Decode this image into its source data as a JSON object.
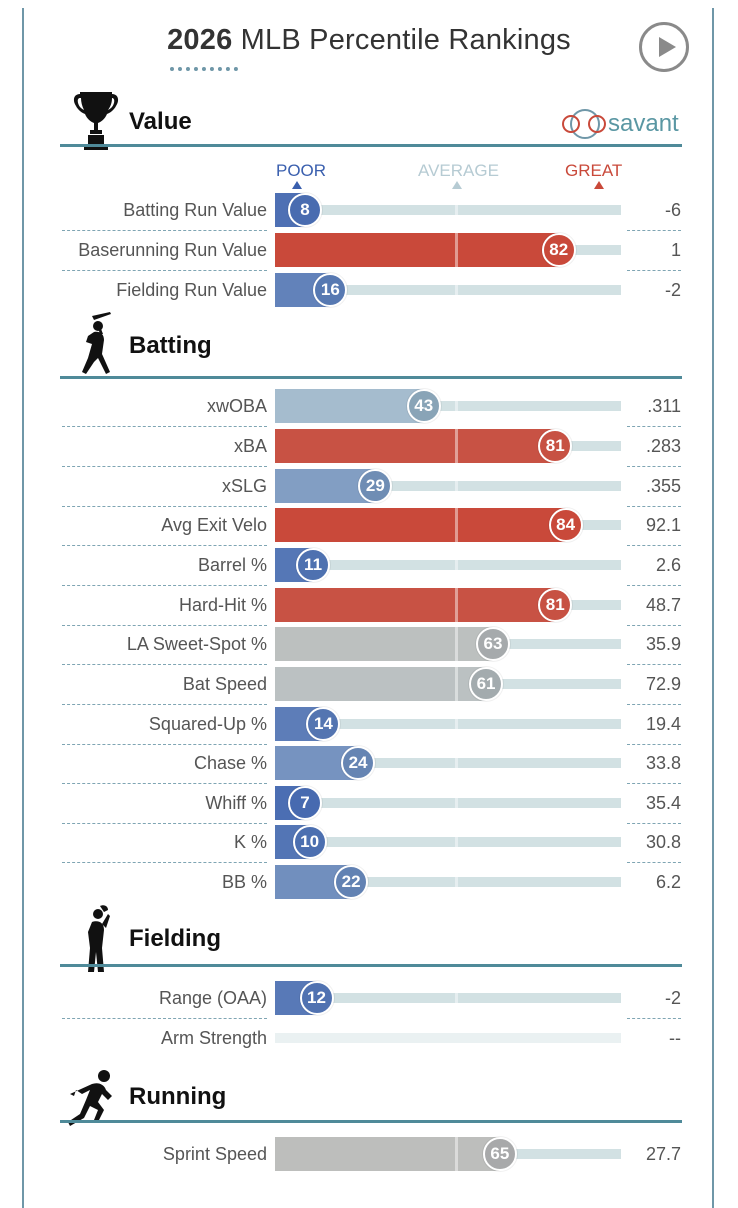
{
  "header": {
    "title_bold": "2026",
    "title_rest": " MLB Percentile Rankings"
  },
  "logo": {
    "text": "savant"
  },
  "scale": {
    "poor": "POOR",
    "average": "AVERAGE",
    "great": "GREAT"
  },
  "colors": {
    "poor": "#3a5fae",
    "average": "#b6cbd3",
    "great": "#c9493a",
    "accent": "#4f8a99"
  },
  "chart_data": {
    "type": "bar",
    "xlim": [
      0,
      100
    ],
    "sections": [
      {
        "title": "Value",
        "icon": "trophy-icon",
        "rows": [
          {
            "label": "Batting Run Value",
            "percentile": 8,
            "value": "-6"
          },
          {
            "label": "Baserunning Run Value",
            "percentile": 82,
            "value": "1"
          },
          {
            "label": "Fielding Run Value",
            "percentile": 16,
            "value": "-2"
          }
        ]
      },
      {
        "title": "Batting",
        "icon": "batter-icon",
        "rows": [
          {
            "label": "xwOBA",
            "percentile": 43,
            "value": ".311"
          },
          {
            "label": "xBA",
            "percentile": 81,
            "value": ".283"
          },
          {
            "label": "xSLG",
            "percentile": 29,
            "value": ".355"
          },
          {
            "label": "Avg Exit Velo",
            "percentile": 84,
            "value": "92.1"
          },
          {
            "label": "Barrel %",
            "percentile": 11,
            "value": "2.6"
          },
          {
            "label": "Hard-Hit %",
            "percentile": 81,
            "value": "48.7"
          },
          {
            "label": "LA Sweet-Spot %",
            "percentile": 63,
            "value": "35.9"
          },
          {
            "label": "Bat Speed",
            "percentile": 61,
            "value": "72.9"
          },
          {
            "label": "Squared-Up %",
            "percentile": 14,
            "value": "19.4"
          },
          {
            "label": "Chase %",
            "percentile": 24,
            "value": "33.8"
          },
          {
            "label": "Whiff %",
            "percentile": 7,
            "value": "35.4"
          },
          {
            "label": "K %",
            "percentile": 10,
            "value": "30.8"
          },
          {
            "label": "BB %",
            "percentile": 22,
            "value": "6.2"
          }
        ]
      },
      {
        "title": "Fielding",
        "icon": "fielder-icon",
        "rows": [
          {
            "label": "Range (OAA)",
            "percentile": 12,
            "value": "-2"
          },
          {
            "label": "Arm Strength",
            "percentile": null,
            "value": "--"
          }
        ]
      },
      {
        "title": "Running",
        "icon": "runner-icon",
        "rows": [
          {
            "label": "Sprint Speed",
            "percentile": 65,
            "value": "27.7"
          }
        ]
      }
    ]
  }
}
